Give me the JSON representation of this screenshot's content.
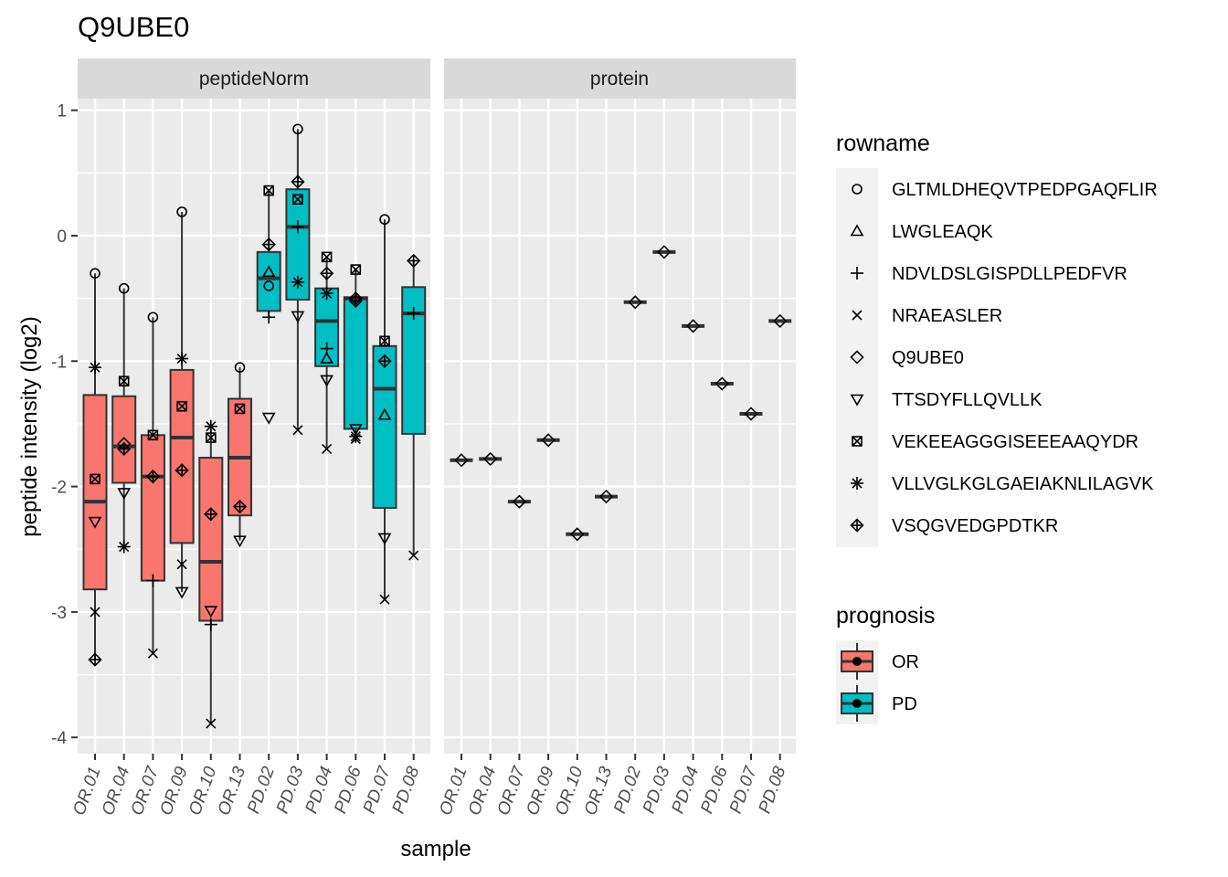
{
  "chart_data": {
    "type": "boxplot",
    "title": "Q9UBE0",
    "xlabel": "sample",
    "ylabel": "peptide intensity (log2)",
    "ylim": [
      -4.1,
      1.1
    ],
    "yticks": [
      1,
      0,
      -1,
      -2,
      -3,
      -4
    ],
    "ytick_labels": [
      "1",
      "0",
      "-1",
      "-2",
      "-3",
      "-4"
    ],
    "samples": [
      "OR.01",
      "OR.04",
      "OR.07",
      "OR.09",
      "OR.10",
      "OR.13",
      "PD.02",
      "PD.03",
      "PD.04",
      "PD.06",
      "PD.07",
      "PD.08"
    ],
    "groups": {
      "OR.01": "OR",
      "OR.04": "OR",
      "OR.07": "OR",
      "OR.09": "OR",
      "OR.10": "OR",
      "OR.13": "OR",
      "PD.02": "PD",
      "PD.03": "PD",
      "PD.04": "PD",
      "PD.06": "PD",
      "PD.07": "PD",
      "PD.08": "PD"
    },
    "facets": [
      "peptideNorm",
      "protein"
    ],
    "legend_rowname": {
      "title": "rowname",
      "items": [
        "GLTMLDHEQVTPEDPGAQFLIR",
        "LWGLEAQK",
        "NDVLDSLGISPDLLPEDFVR",
        "NRAEASLER",
        "Q9UBE0",
        "TTSDYFLLQVLLK",
        "VEKEEAGGGISEEEAAQYDR",
        "VLLVGLKGLGAEIAKNLILAGVK",
        "VSQGVEDGPDTKR"
      ],
      "shapes": [
        "circle",
        "triangle",
        "plus",
        "cross",
        "diamond",
        "triangle-down",
        "square-x",
        "asterisk",
        "diamond-plus"
      ]
    },
    "legend_prognosis": {
      "title": "prognosis",
      "items": [
        "OR",
        "PD"
      ],
      "colors": {
        "OR": "#F8766D",
        "PD": "#00BFC4"
      }
    },
    "boxes": [
      {
        "sample": "OR.01",
        "q1": -2.82,
        "median": -2.12,
        "q3": -1.27,
        "whisker_low": -3.38,
        "whisker_high": -0.3
      },
      {
        "sample": "OR.04",
        "q1": -1.97,
        "median": -1.68,
        "q3": -1.28,
        "whisker_low": -2.48,
        "whisker_high": -0.42
      },
      {
        "sample": "OR.07",
        "q1": -2.75,
        "median": -1.92,
        "q3": -1.59,
        "whisker_low": -3.33,
        "whisker_high": -0.65
      },
      {
        "sample": "OR.09",
        "q1": -2.45,
        "median": -1.61,
        "q3": -1.07,
        "whisker_low": -2.84,
        "whisker_high": 0.19
      },
      {
        "sample": "OR.10",
        "q1": -3.07,
        "median": -2.6,
        "q3": -1.77,
        "whisker_low": -3.89,
        "whisker_high": -1.52
      },
      {
        "sample": "OR.13",
        "q1": -2.23,
        "median": -1.77,
        "q3": -1.3,
        "whisker_low": -2.43,
        "whisker_high": -1.05
      },
      {
        "sample": "PD.02",
        "q1": -0.6,
        "median": -0.34,
        "q3": -0.13,
        "whisker_low": -0.65,
        "whisker_high": 0.36
      },
      {
        "sample": "PD.03",
        "q1": -0.51,
        "median": 0.07,
        "q3": 0.37,
        "whisker_low": -1.55,
        "whisker_high": 0.85
      },
      {
        "sample": "PD.04",
        "q1": -1.04,
        "median": -0.68,
        "q3": -0.42,
        "whisker_low": -1.7,
        "whisker_high": -0.17
      },
      {
        "sample": "PD.06",
        "q1": -1.54,
        "median": -0.5,
        "q3": -0.49,
        "whisker_low": -1.62,
        "whisker_high": -0.27
      },
      {
        "sample": "PD.07",
        "q1": -2.17,
        "median": -1.22,
        "q3": -0.88,
        "whisker_low": -2.9,
        "whisker_high": 0.13
      },
      {
        "sample": "PD.08",
        "q1": -1.58,
        "median": -0.62,
        "q3": -0.41,
        "whisker_low": -2.55,
        "whisker_high": -0.2
      }
    ],
    "points": [
      {
        "sample": "OR.01",
        "shape": "circle",
        "y": -0.3
      },
      {
        "sample": "OR.01",
        "shape": "asterisk",
        "y": -1.05
      },
      {
        "sample": "OR.01",
        "shape": "square-x",
        "y": -1.94
      },
      {
        "sample": "OR.01",
        "shape": "triangle-down",
        "y": -2.28
      },
      {
        "sample": "OR.01",
        "shape": "cross",
        "y": -3.0
      },
      {
        "sample": "OR.01",
        "shape": "diamond-plus",
        "y": -3.38
      },
      {
        "sample": "OR.04",
        "shape": "circle",
        "y": -0.42
      },
      {
        "sample": "OR.04",
        "shape": "square-x",
        "y": -1.16
      },
      {
        "sample": "OR.04",
        "shape": "diamond",
        "y": -1.66
      },
      {
        "sample": "OR.04",
        "shape": "diamond-plus",
        "y": -1.7
      },
      {
        "sample": "OR.04",
        "shape": "triangle-down",
        "y": -2.05
      },
      {
        "sample": "OR.04",
        "shape": "asterisk",
        "y": -2.48
      },
      {
        "sample": "OR.07",
        "shape": "circle",
        "y": -0.65
      },
      {
        "sample": "OR.07",
        "shape": "square-x",
        "y": -1.59
      },
      {
        "sample": "OR.07",
        "shape": "diamond-plus",
        "y": -1.92
      },
      {
        "sample": "OR.07",
        "shape": "plus",
        "y": -2.75
      },
      {
        "sample": "OR.07",
        "shape": "cross",
        "y": -3.33
      },
      {
        "sample": "OR.09",
        "shape": "circle",
        "y": 0.19
      },
      {
        "sample": "OR.09",
        "shape": "asterisk",
        "y": -0.98
      },
      {
        "sample": "OR.09",
        "shape": "square-x",
        "y": -1.36
      },
      {
        "sample": "OR.09",
        "shape": "diamond-plus",
        "y": -1.87
      },
      {
        "sample": "OR.09",
        "shape": "cross",
        "y": -2.62
      },
      {
        "sample": "OR.09",
        "shape": "triangle-down",
        "y": -2.84
      },
      {
        "sample": "OR.10",
        "shape": "asterisk",
        "y": -1.52
      },
      {
        "sample": "OR.10",
        "shape": "square-x",
        "y": -1.61
      },
      {
        "sample": "OR.10",
        "shape": "diamond-plus",
        "y": -2.22
      },
      {
        "sample": "OR.10",
        "shape": "triangle-down",
        "y": -2.99
      },
      {
        "sample": "OR.10",
        "shape": "plus",
        "y": -3.1
      },
      {
        "sample": "OR.10",
        "shape": "cross",
        "y": -3.89
      },
      {
        "sample": "OR.13",
        "shape": "circle",
        "y": -1.05
      },
      {
        "sample": "OR.13",
        "shape": "square-x",
        "y": -1.38
      },
      {
        "sample": "OR.13",
        "shape": "diamond-plus",
        "y": -2.16
      },
      {
        "sample": "OR.13",
        "shape": "triangle-down",
        "y": -2.43
      },
      {
        "sample": "PD.02",
        "shape": "square-x",
        "y": 0.36
      },
      {
        "sample": "PD.02",
        "shape": "diamond-plus",
        "y": -0.07
      },
      {
        "sample": "PD.02",
        "shape": "triangle",
        "y": -0.29
      },
      {
        "sample": "PD.02",
        "shape": "circle",
        "y": -0.4
      },
      {
        "sample": "PD.02",
        "shape": "plus",
        "y": -0.65
      },
      {
        "sample": "PD.02",
        "shape": "triangle-down",
        "y": -1.45
      },
      {
        "sample": "PD.03",
        "shape": "circle",
        "y": 0.85
      },
      {
        "sample": "PD.03",
        "shape": "diamond-plus",
        "y": 0.43
      },
      {
        "sample": "PD.03",
        "shape": "square-x",
        "y": 0.29
      },
      {
        "sample": "PD.03",
        "shape": "plus",
        "y": 0.07
      },
      {
        "sample": "PD.03",
        "shape": "asterisk",
        "y": -0.37
      },
      {
        "sample": "PD.03",
        "shape": "triangle-down",
        "y": -0.64
      },
      {
        "sample": "PD.03",
        "shape": "cross",
        "y": -1.55
      },
      {
        "sample": "PD.04",
        "shape": "square-x",
        "y": -0.17
      },
      {
        "sample": "PD.04",
        "shape": "diamond-plus",
        "y": -0.3
      },
      {
        "sample": "PD.04",
        "shape": "asterisk",
        "y": -0.46
      },
      {
        "sample": "PD.04",
        "shape": "plus",
        "y": -0.9
      },
      {
        "sample": "PD.04",
        "shape": "triangle",
        "y": -0.98
      },
      {
        "sample": "PD.04",
        "shape": "triangle-down",
        "y": -1.15
      },
      {
        "sample": "PD.04",
        "shape": "cross",
        "y": -1.7
      },
      {
        "sample": "PD.06",
        "shape": "square-x",
        "y": -0.27
      },
      {
        "sample": "PD.06",
        "shape": "diamond",
        "y": -0.5
      },
      {
        "sample": "PD.06",
        "shape": "diamond-plus",
        "y": -0.52
      },
      {
        "sample": "PD.06",
        "shape": "triangle-down",
        "y": -1.54
      },
      {
        "sample": "PD.06",
        "shape": "asterisk",
        "y": -1.6
      },
      {
        "sample": "PD.06",
        "shape": "cross",
        "y": -1.62
      },
      {
        "sample": "PD.07",
        "shape": "circle",
        "y": 0.13
      },
      {
        "sample": "PD.07",
        "shape": "square-x",
        "y": -0.84
      },
      {
        "sample": "PD.07",
        "shape": "diamond-plus",
        "y": -1.0
      },
      {
        "sample": "PD.07",
        "shape": "triangle",
        "y": -1.43
      },
      {
        "sample": "PD.07",
        "shape": "triangle-down",
        "y": -2.41
      },
      {
        "sample": "PD.07",
        "shape": "cross",
        "y": -2.9
      },
      {
        "sample": "PD.08",
        "shape": "diamond-plus",
        "y": -0.2
      },
      {
        "sample": "PD.08",
        "shape": "plus",
        "y": -0.62
      },
      {
        "sample": "PD.08",
        "shape": "cross",
        "y": -2.55
      }
    ],
    "protein_values": [
      {
        "sample": "OR.01",
        "y": -1.79
      },
      {
        "sample": "OR.04",
        "y": -1.78
      },
      {
        "sample": "OR.07",
        "y": -2.12
      },
      {
        "sample": "OR.09",
        "y": -1.63
      },
      {
        "sample": "OR.10",
        "y": -2.38
      },
      {
        "sample": "OR.13",
        "y": -2.08
      },
      {
        "sample": "PD.02",
        "y": -0.53
      },
      {
        "sample": "PD.03",
        "y": -0.13
      },
      {
        "sample": "PD.04",
        "y": -0.72
      },
      {
        "sample": "PD.06",
        "y": -1.18
      },
      {
        "sample": "PD.07",
        "y": -1.42
      },
      {
        "sample": "PD.08",
        "y": -0.68
      }
    ]
  }
}
